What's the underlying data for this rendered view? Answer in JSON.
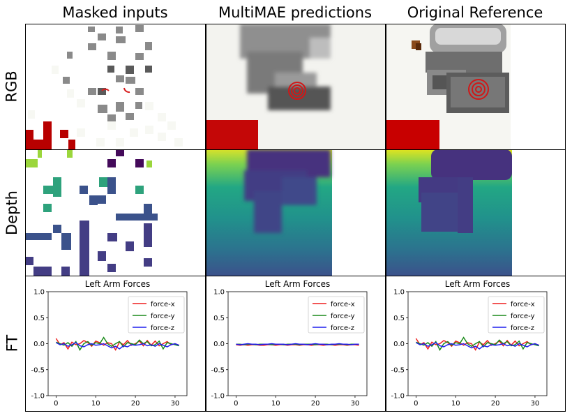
{
  "columns": [
    "Masked inputs",
    "MultiMAE predictions",
    "Original Reference"
  ],
  "rows": [
    "RGB",
    "Depth",
    "FT"
  ],
  "colors": {
    "force_x": "#ee1f1f",
    "force_y": "#1a8a1a",
    "force_z": "#1f1fee",
    "depth_near": "#f2e61f",
    "depth_mid": "#21908d",
    "depth_far": "#440a5a",
    "table_red": "#c80000"
  },
  "chart_data": [
    {
      "type": "line",
      "title": "Left Arm Forces",
      "x": [
        0,
        1,
        2,
        3,
        4,
        5,
        6,
        7,
        8,
        9,
        10,
        11,
        12,
        13,
        14,
        15,
        16,
        17,
        18,
        19,
        20,
        21,
        22,
        23,
        24,
        25,
        26,
        27,
        28,
        29,
        30,
        31
      ],
      "ylim": [
        -1.0,
        1.0
      ],
      "xlim": [
        -2,
        33
      ],
      "xticks": [
        "0",
        "10",
        "20",
        "30"
      ],
      "yticks": [
        "-1.0",
        "-0.5",
        "0.0",
        "0.5",
        "1.0"
      ],
      "legend_position": "top-right",
      "series": [
        {
          "name": "force-x",
          "values": [
            0.1,
            -0.02,
            0.02,
            -0.1,
            0.03,
            -0.02,
            0.0,
            0.06,
            0.02,
            -0.05,
            0.05,
            0.02,
            -0.03,
            0.02,
            0.0,
            -0.12,
            0.03,
            -0.02,
            0.06,
            -0.03,
            0.0,
            0.05,
            -0.04,
            0.06,
            -0.03,
            0.05,
            -0.04,
            0.0,
            0.04,
            -0.02,
            0.0,
            -0.03
          ]
        },
        {
          "name": "force-y",
          "values": [
            0.03,
            0.0,
            -0.03,
            0.02,
            -0.05,
            0.04,
            -0.12,
            0.0,
            0.04,
            -0.03,
            0.02,
            0.0,
            0.12,
            0.0,
            -0.05,
            0.0,
            0.04,
            -0.06,
            0.02,
            0.0,
            -0.02,
            0.07,
            0.0,
            0.04,
            -0.04,
            -0.02,
            0.05,
            -0.1,
            0.02,
            0.0,
            -0.02,
            -0.04
          ]
        },
        {
          "name": "force-z",
          "values": [
            0.02,
            -0.02,
            0.0,
            -0.05,
            -0.02,
            0.02,
            -0.04,
            -0.06,
            -0.02,
            0.0,
            -0.03,
            -0.02,
            0.0,
            -0.04,
            -0.08,
            -0.05,
            -0.1,
            -0.04,
            -0.06,
            -0.02,
            -0.03,
            -0.02,
            0.0,
            -0.04,
            -0.02,
            -0.05,
            0.0,
            -0.03,
            -0.06,
            -0.02,
            0.0,
            -0.03
          ]
        }
      ]
    },
    {
      "type": "line",
      "title": "Left Arm Forces",
      "x": [
        0,
        1,
        2,
        3,
        4,
        5,
        6,
        7,
        8,
        9,
        10,
        11,
        12,
        13,
        14,
        15,
        16,
        17,
        18,
        19,
        20,
        21,
        22,
        23,
        24,
        25,
        26,
        27,
        28,
        29,
        30,
        31
      ],
      "ylim": [
        -1.0,
        1.0
      ],
      "xlim": [
        -2,
        33
      ],
      "xticks": [
        "0",
        "10",
        "20",
        "30"
      ],
      "yticks": [
        "-1.0",
        "-0.5",
        "0.0",
        "0.5",
        "1.0"
      ],
      "legend_position": "top-right",
      "series": [
        {
          "name": "force-x",
          "values": [
            -0.02,
            -0.03,
            -0.02,
            -0.03,
            -0.02,
            -0.02,
            -0.03,
            -0.03,
            -0.02,
            -0.02,
            -0.03,
            -0.02,
            -0.02,
            -0.03,
            -0.02,
            -0.02,
            -0.03,
            -0.02,
            -0.02,
            -0.03,
            -0.02,
            -0.02,
            -0.03,
            -0.02,
            -0.02,
            -0.03,
            -0.02,
            -0.02,
            -0.03,
            -0.02,
            -0.02,
            -0.03
          ]
        },
        {
          "name": "force-y",
          "values": [
            -0.01,
            -0.01,
            -0.02,
            -0.01,
            -0.01,
            -0.02,
            -0.01,
            -0.01,
            -0.01,
            -0.02,
            -0.01,
            -0.01,
            -0.02,
            -0.01,
            -0.01,
            -0.01,
            -0.02,
            -0.01,
            -0.01,
            -0.01,
            -0.02,
            -0.01,
            -0.01,
            -0.01,
            -0.02,
            -0.01,
            -0.01,
            -0.01,
            -0.02,
            -0.01,
            -0.01,
            -0.01
          ]
        },
        {
          "name": "force-z",
          "values": [
            -0.01,
            -0.02,
            -0.01,
            0.0,
            -0.01,
            -0.01,
            -0.02,
            -0.01,
            -0.01,
            0.0,
            -0.01,
            -0.01,
            -0.01,
            -0.02,
            -0.01,
            0.0,
            -0.01,
            -0.01,
            -0.02,
            -0.01,
            0.0,
            -0.01,
            -0.01,
            -0.02,
            -0.01,
            -0.01,
            0.0,
            -0.01,
            -0.01,
            -0.02,
            -0.01,
            -0.01
          ]
        }
      ]
    },
    {
      "type": "line",
      "title": "Left Arm Forces",
      "x": [
        0,
        1,
        2,
        3,
        4,
        5,
        6,
        7,
        8,
        9,
        10,
        11,
        12,
        13,
        14,
        15,
        16,
        17,
        18,
        19,
        20,
        21,
        22,
        23,
        24,
        25,
        26,
        27,
        28,
        29,
        30,
        31
      ],
      "ylim": [
        -1.0,
        1.0
      ],
      "xlim": [
        -2,
        33
      ],
      "xticks": [
        "0",
        "10",
        "20",
        "30"
      ],
      "yticks": [
        "-1.0",
        "-0.5",
        "0.0",
        "0.5",
        "1.0"
      ],
      "legend_position": "top-right",
      "series": [
        {
          "name": "force-x",
          "values": [
            0.1,
            -0.02,
            0.02,
            -0.1,
            0.03,
            -0.02,
            0.0,
            0.06,
            0.02,
            -0.05,
            0.05,
            0.02,
            -0.03,
            0.02,
            0.0,
            -0.12,
            0.03,
            -0.02,
            0.06,
            -0.03,
            0.0,
            0.05,
            -0.04,
            0.06,
            -0.03,
            0.05,
            -0.04,
            0.0,
            0.04,
            -0.02,
            0.0,
            -0.03
          ]
        },
        {
          "name": "force-y",
          "values": [
            0.03,
            0.0,
            -0.03,
            0.02,
            -0.05,
            0.04,
            -0.12,
            0.0,
            0.04,
            -0.03,
            0.02,
            0.0,
            0.12,
            0.0,
            -0.05,
            0.0,
            0.04,
            -0.06,
            0.02,
            0.0,
            -0.02,
            0.07,
            0.0,
            0.04,
            -0.04,
            -0.02,
            0.05,
            -0.1,
            0.02,
            0.0,
            -0.02,
            -0.04
          ]
        },
        {
          "name": "force-z",
          "values": [
            0.02,
            -0.02,
            0.0,
            -0.05,
            -0.02,
            0.02,
            -0.04,
            -0.06,
            -0.02,
            0.0,
            -0.03,
            -0.02,
            0.0,
            -0.04,
            -0.08,
            -0.05,
            -0.1,
            -0.04,
            -0.06,
            -0.02,
            -0.03,
            -0.02,
            0.0,
            -0.04,
            -0.02,
            -0.05,
            0.0,
            -0.03,
            -0.06,
            -0.02,
            0.0,
            -0.03
          ]
        }
      ]
    }
  ]
}
